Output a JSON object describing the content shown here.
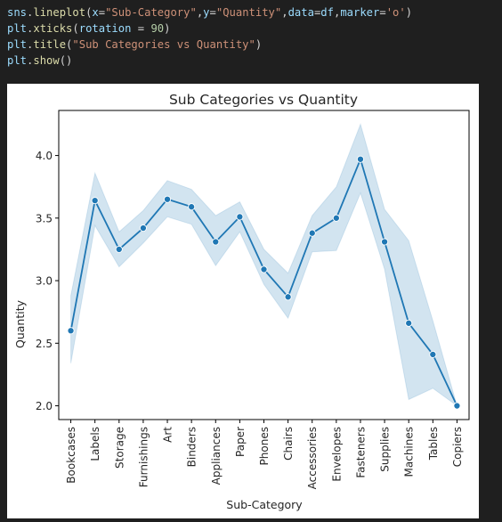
{
  "code_cell": {
    "lines": [
      [
        {
          "t": "sns",
          "c": "tok-id"
        },
        {
          "t": ".",
          "c": "tok-plain"
        },
        {
          "t": "lineplot",
          "c": "tok-fn"
        },
        {
          "t": "(",
          "c": "tok-plain"
        },
        {
          "t": "x",
          "c": "tok-id"
        },
        {
          "t": "=",
          "c": "tok-plain"
        },
        {
          "t": "\"Sub-Category\"",
          "c": "tok-str"
        },
        {
          "t": ",",
          "c": "tok-plain"
        },
        {
          "t": "y",
          "c": "tok-id"
        },
        {
          "t": "=",
          "c": "tok-plain"
        },
        {
          "t": "\"Quantity\"",
          "c": "tok-str"
        },
        {
          "t": ",",
          "c": "tok-plain"
        },
        {
          "t": "data",
          "c": "tok-id"
        },
        {
          "t": "=",
          "c": "tok-plain"
        },
        {
          "t": "df",
          "c": "tok-id"
        },
        {
          "t": ",",
          "c": "tok-plain"
        },
        {
          "t": "marker",
          "c": "tok-id"
        },
        {
          "t": "=",
          "c": "tok-plain"
        },
        {
          "t": "'o'",
          "c": "tok-str"
        },
        {
          "t": ")",
          "c": "tok-plain"
        }
      ],
      [
        {
          "t": "plt",
          "c": "tok-id"
        },
        {
          "t": ".",
          "c": "tok-plain"
        },
        {
          "t": "xticks",
          "c": "tok-fn"
        },
        {
          "t": "(",
          "c": "tok-plain"
        },
        {
          "t": "rotation",
          "c": "tok-id"
        },
        {
          "t": " = ",
          "c": "tok-plain"
        },
        {
          "t": "90",
          "c": "tok-num"
        },
        {
          "t": ")",
          "c": "tok-plain"
        }
      ],
      [
        {
          "t": "plt",
          "c": "tok-id"
        },
        {
          "t": ".",
          "c": "tok-plain"
        },
        {
          "t": "title",
          "c": "tok-fn"
        },
        {
          "t": "(",
          "c": "tok-plain"
        },
        {
          "t": "\"Sub Categories vs Quantity\"",
          "c": "tok-str"
        },
        {
          "t": ")",
          "c": "tok-plain"
        }
      ],
      [
        {
          "t": "plt",
          "c": "tok-id"
        },
        {
          "t": ".",
          "c": "tok-plain"
        },
        {
          "t": "show",
          "c": "tok-fn"
        },
        {
          "t": "()",
          "c": "tok-plain"
        }
      ]
    ]
  },
  "colors": {
    "editor_bg": "#1f1f1f",
    "line": "#1f77b4",
    "band": "#1f77b4"
  },
  "chart_data": {
    "type": "line",
    "title": "Sub Categories vs Quantity",
    "xlabel": "Sub-Category",
    "ylabel": "Quantity",
    "ylim": [
      1.89,
      4.36
    ],
    "yticks": [
      2.0,
      2.5,
      3.0,
      3.5,
      4.0
    ],
    "ytick_labels": [
      "2.0",
      "2.5",
      "3.0",
      "3.5",
      "4.0"
    ],
    "xtick_rotation": 90,
    "grid": false,
    "marker": "o",
    "categories": [
      "Bookcases",
      "Labels",
      "Storage",
      "Furnishings",
      "Art",
      "Binders",
      "Appliances",
      "Paper",
      "Phones",
      "Chairs",
      "Accessories",
      "Envelopes",
      "Fasteners",
      "Supplies",
      "Machines",
      "Tables",
      "Copiers"
    ],
    "series": [
      {
        "values": [
          2.6,
          3.64,
          3.25,
          3.42,
          3.65,
          3.59,
          3.31,
          3.51,
          3.09,
          2.87,
          3.38,
          3.5,
          3.97,
          3.31,
          2.66,
          2.41,
          2.0
        ],
        "ci_upper": [
          2.88,
          3.86,
          3.39,
          3.56,
          3.8,
          3.73,
          3.52,
          3.63,
          3.25,
          3.06,
          3.52,
          3.75,
          4.25,
          3.57,
          3.32,
          2.68,
          2.0
        ],
        "ci_lower": [
          2.34,
          3.44,
          3.11,
          3.3,
          3.51,
          3.45,
          3.12,
          3.39,
          2.97,
          2.7,
          3.23,
          3.24,
          3.7,
          3.09,
          2.05,
          2.14,
          2.0
        ]
      }
    ]
  }
}
